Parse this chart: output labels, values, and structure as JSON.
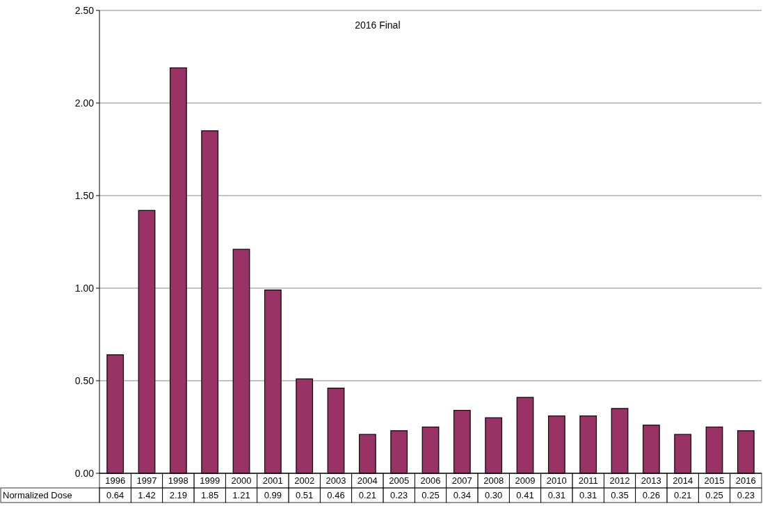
{
  "chart_data": {
    "type": "bar",
    "title": "2016 Final",
    "categories": [
      "1996",
      "1997",
      "1998",
      "1999",
      "2000",
      "2001",
      "2002",
      "2003",
      "2004",
      "2005",
      "2006",
      "2007",
      "2008",
      "2009",
      "2010",
      "2011",
      "2012",
      "2013",
      "2014",
      "2015",
      "2016"
    ],
    "series": [
      {
        "name": "Normalized Dose",
        "color": "#993366",
        "values": [
          0.64,
          1.42,
          2.19,
          1.85,
          1.21,
          0.99,
          0.51,
          0.46,
          0.21,
          0.23,
          0.25,
          0.34,
          0.3,
          0.41,
          0.31,
          0.31,
          0.35,
          0.26,
          0.21,
          0.25,
          0.23
        ],
        "value_labels": [
          "0.64",
          "1.42",
          "2.19",
          "1.85",
          "1.21",
          "0.99",
          "0.51",
          "0.46",
          "0.21",
          "0.23",
          "0.25",
          "0.34",
          "0.30",
          "0.41",
          "0.31",
          "0.31",
          "0.35",
          "0.26",
          "0.21",
          "0.25",
          "0.23"
        ]
      }
    ],
    "ylim": [
      0,
      2.5
    ],
    "yticks": [
      {
        "value": 0,
        "label": "0.00"
      },
      {
        "value": 0.5,
        "label": "0.50"
      },
      {
        "value": 1,
        "label": "1.00"
      },
      {
        "value": 1.5,
        "label": "1.50"
      },
      {
        "value": 2,
        "label": "2.00"
      },
      {
        "value": 2.5,
        "label": "2.50"
      }
    ],
    "grid": "y"
  }
}
